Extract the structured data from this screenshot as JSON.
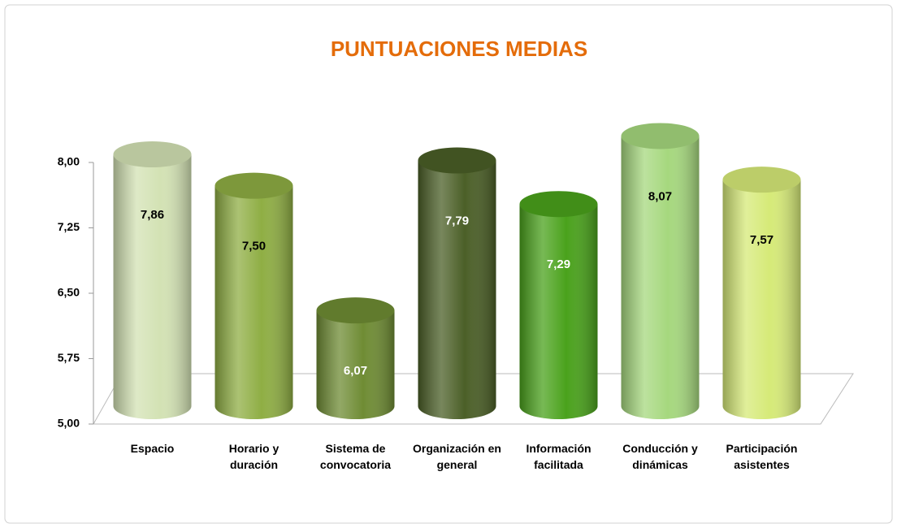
{
  "chart_data": {
    "type": "bar",
    "title": "PUNTUACIONES MEDIAS",
    "categories": [
      "Espacio",
      "Horario y duración",
      "Sistema de convocatoria",
      "Organización en general",
      "Información facilitada",
      "Conducción y dinámicas",
      "Participación asistentes"
    ],
    "values": [
      7.86,
      7.5,
      6.07,
      7.79,
      7.29,
      8.07,
      7.57
    ],
    "value_labels": [
      "7,86",
      "7,50",
      "6,07",
      "7,79",
      "7,29",
      "8,07",
      "7,57"
    ],
    "colors": [
      "#d3e2b4",
      "#8fae44",
      "#6f8c34",
      "#4b5f27",
      "#4aa21c",
      "#a6d87e",
      "#d6ea78"
    ],
    "ylim": [
      5,
      8
    ],
    "yticks": [
      {
        "value": 5,
        "label": "5,00"
      },
      {
        "value": 5.75,
        "label": "5,75"
      },
      {
        "value": 6.5,
        "label": "6,50"
      },
      {
        "value": 7.25,
        "label": "7,25"
      },
      {
        "value": 8,
        "label": "8,00"
      }
    ],
    "title_color": "#e46c0a"
  }
}
